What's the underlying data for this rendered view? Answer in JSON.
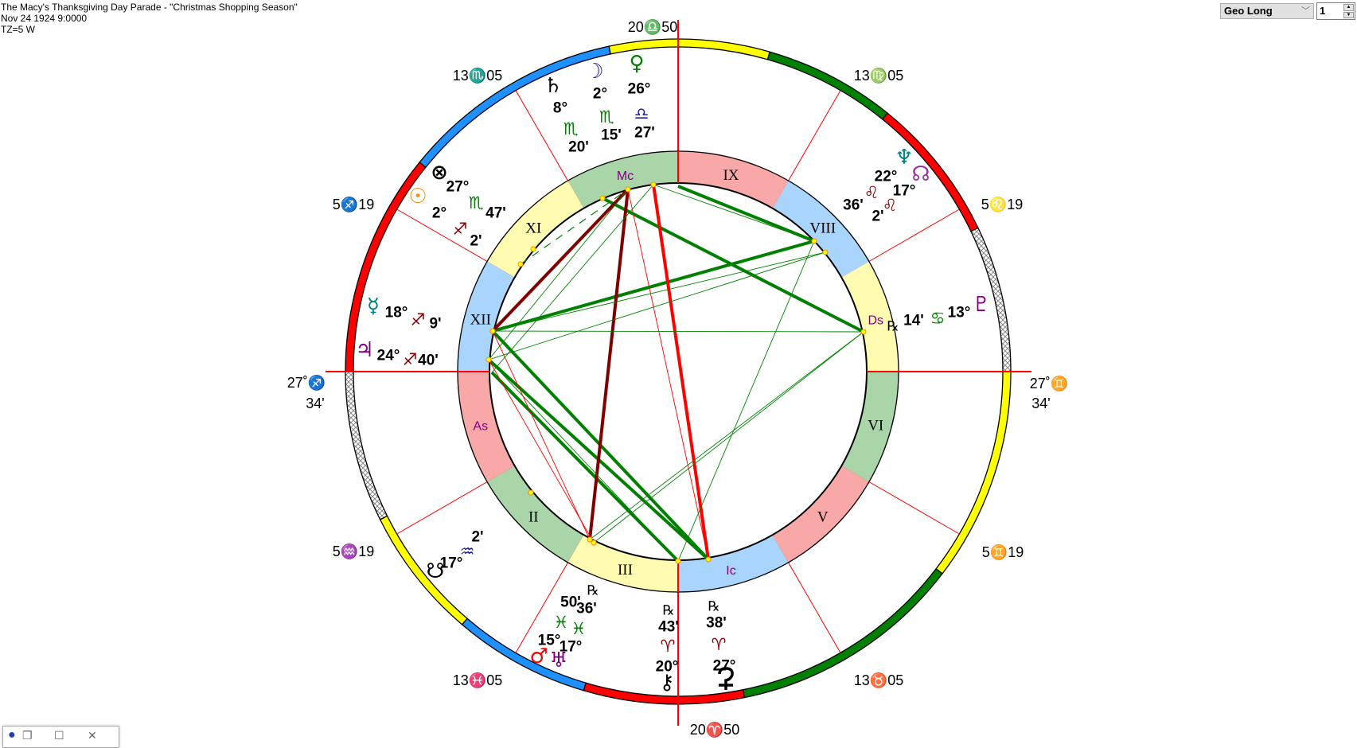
{
  "header": {
    "title": "The Macy's Thanksgiving Day Parade - \"Christmas Shopping Season\"",
    "datetime": "Nov 24 1924 9:0000",
    "timezone": "TZ=5 W"
  },
  "controls": {
    "coordinate_select": "Geo Long",
    "spinner_value": "1"
  },
  "minimized_window": {
    "icon": "globe-icon",
    "restore": "❐",
    "maximize": "☐",
    "close": "✕"
  },
  "colors": {
    "fire": "#ff0000",
    "earth": "#008000",
    "air": "#ffff00",
    "water": "#1e90ff",
    "house_fire": "#f9a8a8",
    "house_earth": "#a9d5a9",
    "house_air": "#fffbb0",
    "house_water": "#a9d4fb",
    "axis": "#ff0000",
    "house_label": "#800080"
  },
  "outer_band": [
    "fire",
    "water",
    "air",
    "earth",
    "fire",
    "hatched",
    "air",
    "earth",
    "fire",
    "water",
    "air",
    "hatched"
  ],
  "houses": [
    {
      "num": 1,
      "label": "As",
      "element": "house_fire"
    },
    {
      "num": 2,
      "label": "II",
      "element": "house_earth"
    },
    {
      "num": 3,
      "label": "III",
      "element": "house_air"
    },
    {
      "num": 4,
      "label": "Ic",
      "element": "house_water"
    },
    {
      "num": 5,
      "label": "V",
      "element": "house_fire"
    },
    {
      "num": 6,
      "label": "VI",
      "element": "house_earth"
    },
    {
      "num": 7,
      "label": "Ds",
      "element": "house_air"
    },
    {
      "num": 8,
      "label": "VIII",
      "element": "house_water"
    },
    {
      "num": 9,
      "label": "IX",
      "element": "house_fire"
    },
    {
      "num": 10,
      "label": "Mc",
      "element": "house_earth"
    },
    {
      "num": 11,
      "label": "XI",
      "element": "house_air"
    },
    {
      "num": 12,
      "label": "XII",
      "element": "house_water"
    }
  ],
  "cusps": {
    "mc": "20♎50",
    "c11": "13♏05",
    "c9": "13♍05",
    "c12": "5♐19",
    "c8": "5♌19",
    "asc": {
      "deg": "27˚♐",
      "min": "34'"
    },
    "desc": {
      "deg": "27˚♊",
      "min": "34'"
    },
    "c2": "5♒19",
    "c6": "5♊19",
    "c3": "13♓05",
    "c5": "13♉05",
    "ic": "20♈50"
  },
  "planets": [
    {
      "name": "Saturn",
      "glyph": "♄",
      "glyph_color": "#000000",
      "degree": "8°",
      "sign": "♏",
      "sign_color": "#008000",
      "minutes": "20'"
    },
    {
      "name": "Moon",
      "glyph": "☽",
      "glyph_color": "#1c1ca8",
      "degree": "2°",
      "sign": "♏",
      "sign_color": "#008000",
      "minutes": "15'"
    },
    {
      "name": "Venus",
      "glyph": "♀",
      "glyph_color": "#008000",
      "degree": "26°",
      "sign": "♎",
      "sign_color": "#1c1ca8",
      "minutes": "27'"
    },
    {
      "name": "Part of Fortune",
      "glyph": "⊗",
      "glyph_color": "#000000",
      "degree": "27°",
      "sign": "♏",
      "sign_color": "#008000",
      "minutes": "47'"
    },
    {
      "name": "Sun",
      "glyph": "☉",
      "glyph_color": "#ff8c00",
      "degree": "2°",
      "sign": "♐",
      "sign_color": "#8b0000",
      "minutes": "2'"
    },
    {
      "name": "Neptune",
      "glyph": "♆",
      "glyph_color": "#008080",
      "degree": "22°",
      "sign": "♌",
      "sign_color": "#8b0000",
      "minutes": "36'"
    },
    {
      "name": "North Node",
      "glyph": "☊",
      "glyph_color": "#9b30a0",
      "degree": "17°",
      "sign": "♌",
      "sign_color": "#8b0000",
      "minutes": "2'"
    },
    {
      "name": "Pluto",
      "glyph": "♇",
      "glyph_color": "#800080",
      "degree": "13°",
      "sign": "♋",
      "sign_color": "#008000",
      "minutes": "14'",
      "retrograde": "℞"
    },
    {
      "name": "Mercury",
      "glyph": "☿",
      "glyph_color": "#008080",
      "degree": "18°",
      "sign": "♐",
      "sign_color": "#8b0000",
      "minutes": "9'"
    },
    {
      "name": "Jupiter",
      "glyph": "♃",
      "glyph_color": "#800080",
      "degree": "24°",
      "sign": "♐",
      "sign_color": "#8b0000",
      "minutes": "40'"
    },
    {
      "name": "South Node",
      "glyph": "☋",
      "glyph_color": "#000000",
      "degree": "17°",
      "sign": "♒",
      "sign_color": "#1c1ca8",
      "minutes": "2'"
    },
    {
      "name": "Mars",
      "glyph": "♂",
      "glyph_color": "#ff0000",
      "degree": "15°",
      "sign": "♓",
      "sign_color": "#008000",
      "minutes": "50'"
    },
    {
      "name": "Uranus",
      "glyph": "♅",
      "glyph_color": "#800080",
      "degree": "17°",
      "sign": "♓",
      "sign_color": "#008000",
      "minutes": "36'",
      "retrograde": "℞"
    },
    {
      "name": "Chiron",
      "glyph": "⚷",
      "glyph_color": "#000000",
      "degree": "20°",
      "sign": "♈",
      "sign_color": "#8b0000",
      "minutes": "43'",
      "retrograde": "℞"
    },
    {
      "name": "Eris",
      "glyph": "",
      "glyph_icon": "eris-icon",
      "glyph_color": "#000000",
      "degree": "27°",
      "sign": "♈",
      "sign_color": "#8b0000",
      "minutes": "38'",
      "retrograde": "℞"
    }
  ],
  "aspects": [
    {
      "from": "MC",
      "to": "Neptune",
      "color": "#008000",
      "weight": "major"
    },
    {
      "from": "Saturn",
      "to": "Pluto",
      "color": "#008000",
      "weight": "major"
    },
    {
      "from": "Mercury",
      "to": "Neptune",
      "color": "#008000",
      "weight": "major"
    },
    {
      "from": "Mercury",
      "to": "Eris",
      "color": "#008000",
      "weight": "major"
    },
    {
      "from": "Jupiter",
      "to": "Eris",
      "color": "#008000",
      "weight": "major"
    },
    {
      "from": "Asc",
      "to": "Chiron",
      "color": "#008000",
      "weight": "major"
    },
    {
      "from": "Mercury",
      "to": "Moon",
      "color": "#800000",
      "weight": "major"
    },
    {
      "from": "Moon",
      "to": "Mars",
      "color": "#800000",
      "weight": "major"
    },
    {
      "from": "Venus",
      "to": "Eris",
      "color": "#ff0000",
      "weight": "major"
    },
    {
      "from": "Moon",
      "to": "Eris",
      "color": "#ff0000",
      "weight": "minor"
    },
    {
      "from": "Mercury",
      "to": "Mars",
      "color": "#ff0000",
      "weight": "minor"
    },
    {
      "from": "Jupiter",
      "to": "Uranus",
      "color": "#ff0000",
      "weight": "minor"
    },
    {
      "from": "Venus",
      "to": "Neptune",
      "color": "#008000",
      "weight": "minor"
    },
    {
      "from": "Venus",
      "to": "Asc",
      "color": "#008000",
      "weight": "minor"
    },
    {
      "from": "Moon",
      "to": "Jupiter",
      "color": "#008000",
      "weight": "minor"
    },
    {
      "from": "Jupiter",
      "to": "North Node",
      "color": "#008000",
      "weight": "minor"
    },
    {
      "from": "Mercury",
      "to": "North Node",
      "color": "#008000",
      "weight": "minor"
    },
    {
      "from": "Mercury",
      "to": "Pluto",
      "color": "#008000",
      "weight": "minor"
    },
    {
      "from": "Neptune",
      "to": "Chiron",
      "color": "#008000",
      "weight": "minor"
    },
    {
      "from": "Pluto",
      "to": "Mars",
      "color": "#008000",
      "weight": "minor"
    },
    {
      "from": "Pluto",
      "to": "Uranus",
      "color": "#008000",
      "weight": "minor"
    },
    {
      "from": "Jupiter",
      "to": "Chiron",
      "color": "#008000",
      "weight": "minor"
    },
    {
      "from": "Sun",
      "to": "Moon",
      "color": "#008000",
      "weight": "dashed"
    }
  ]
}
